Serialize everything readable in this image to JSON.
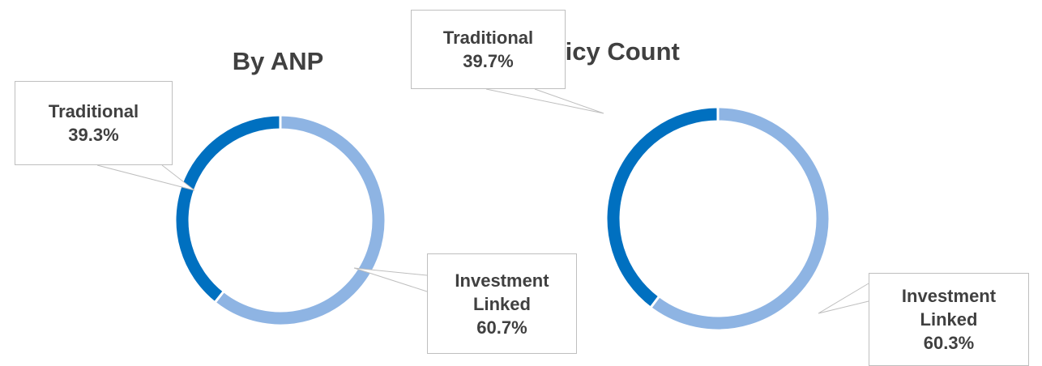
{
  "chart_data": [
    {
      "type": "donut",
      "title": "By ANP",
      "categories": [
        "Investment Linked",
        "Traditional"
      ],
      "values": [
        60.7,
        39.3
      ],
      "value_labels": [
        "60.7%",
        "39.3%"
      ],
      "colors": [
        "#8eb4e3",
        "#0070c0"
      ]
    },
    {
      "type": "donut",
      "title": "By Policy Count",
      "categories": [
        "Investment Linked",
        "Traditional"
      ],
      "values": [
        60.3,
        39.7
      ],
      "value_labels": [
        "60.3%",
        "39.7%"
      ],
      "colors": [
        "#8eb4e3",
        "#0070c0"
      ]
    }
  ]
}
